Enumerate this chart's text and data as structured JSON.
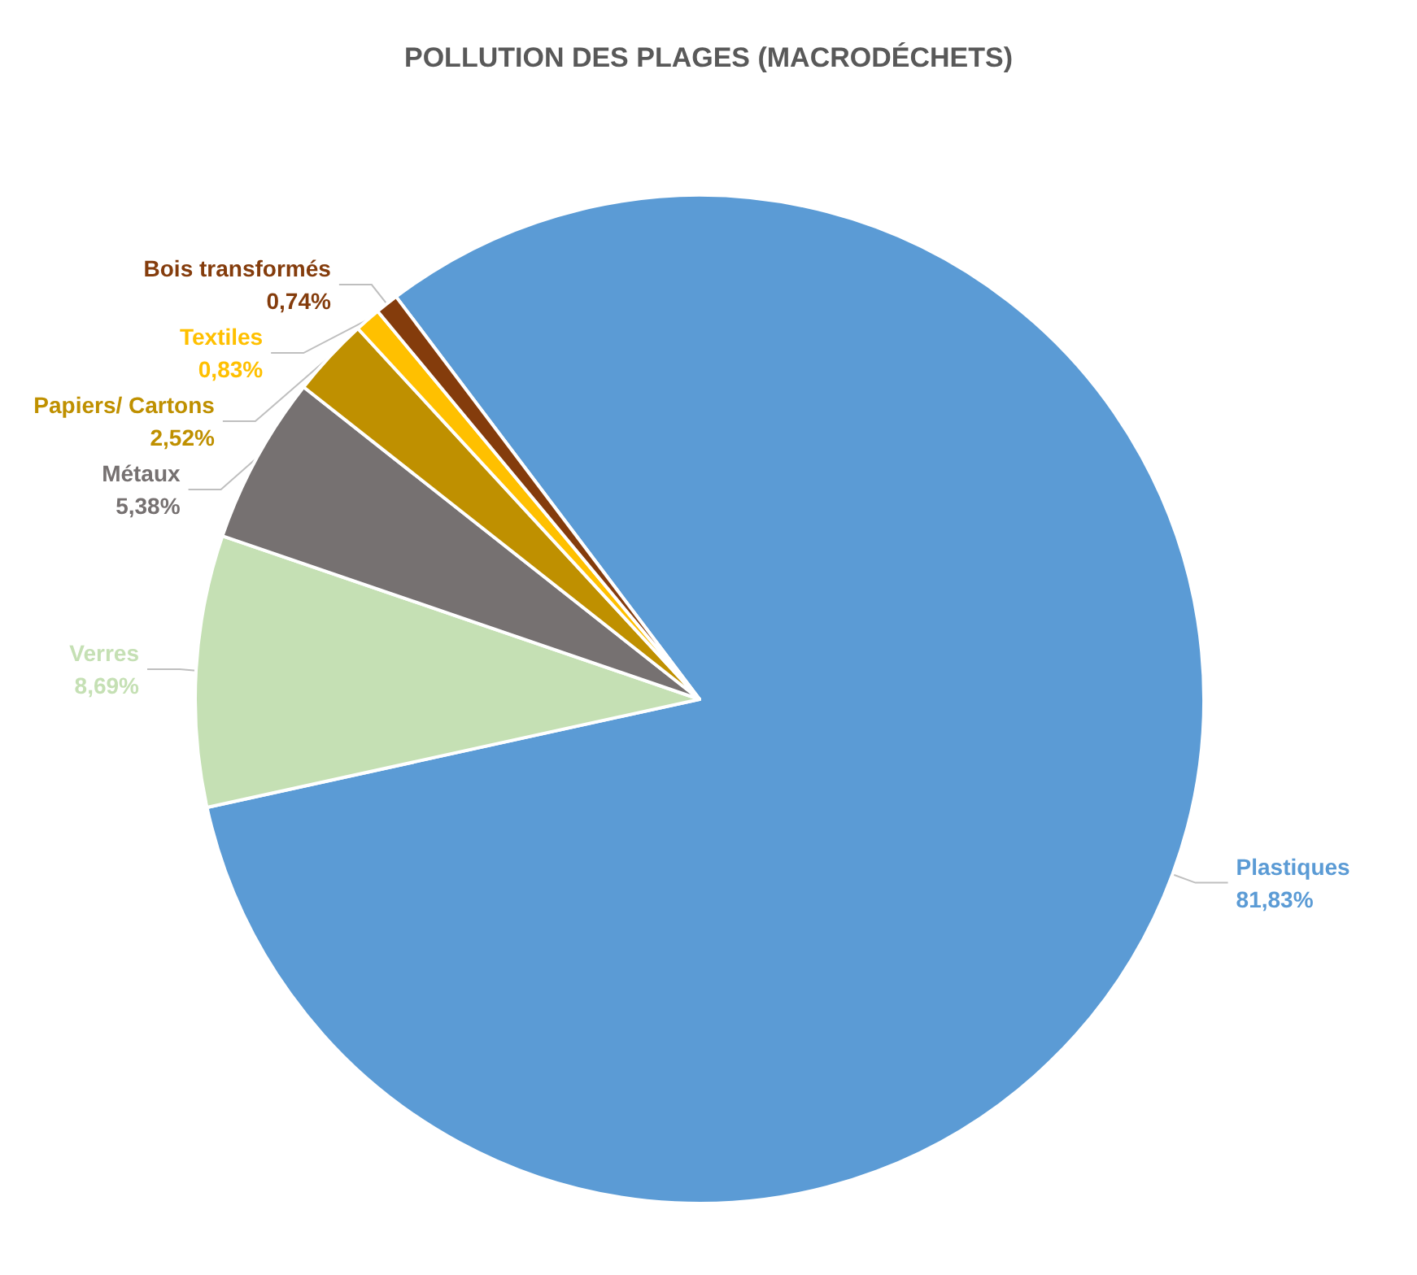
{
  "chart_data": {
    "type": "pie",
    "title": "POLLUTION DES PLAGES (MACRODÉCHETS)",
    "categories": [
      "Plastiques",
      "Verres",
      "Métaux",
      "Papiers/ Cartons",
      "Textiles",
      "Bois transformés"
    ],
    "values": [
      81.83,
      8.69,
      5.38,
      2.52,
      0.83,
      0.74
    ],
    "value_labels": [
      "81,83%",
      "8,69%",
      "5,38%",
      "2,52%",
      "0,83%",
      "0,74%"
    ],
    "colors": [
      "#5b9bd5",
      "#c5e0b4",
      "#767171",
      "#bf9000",
      "#ffc000",
      "#843c0c"
    ],
    "legend": false
  }
}
